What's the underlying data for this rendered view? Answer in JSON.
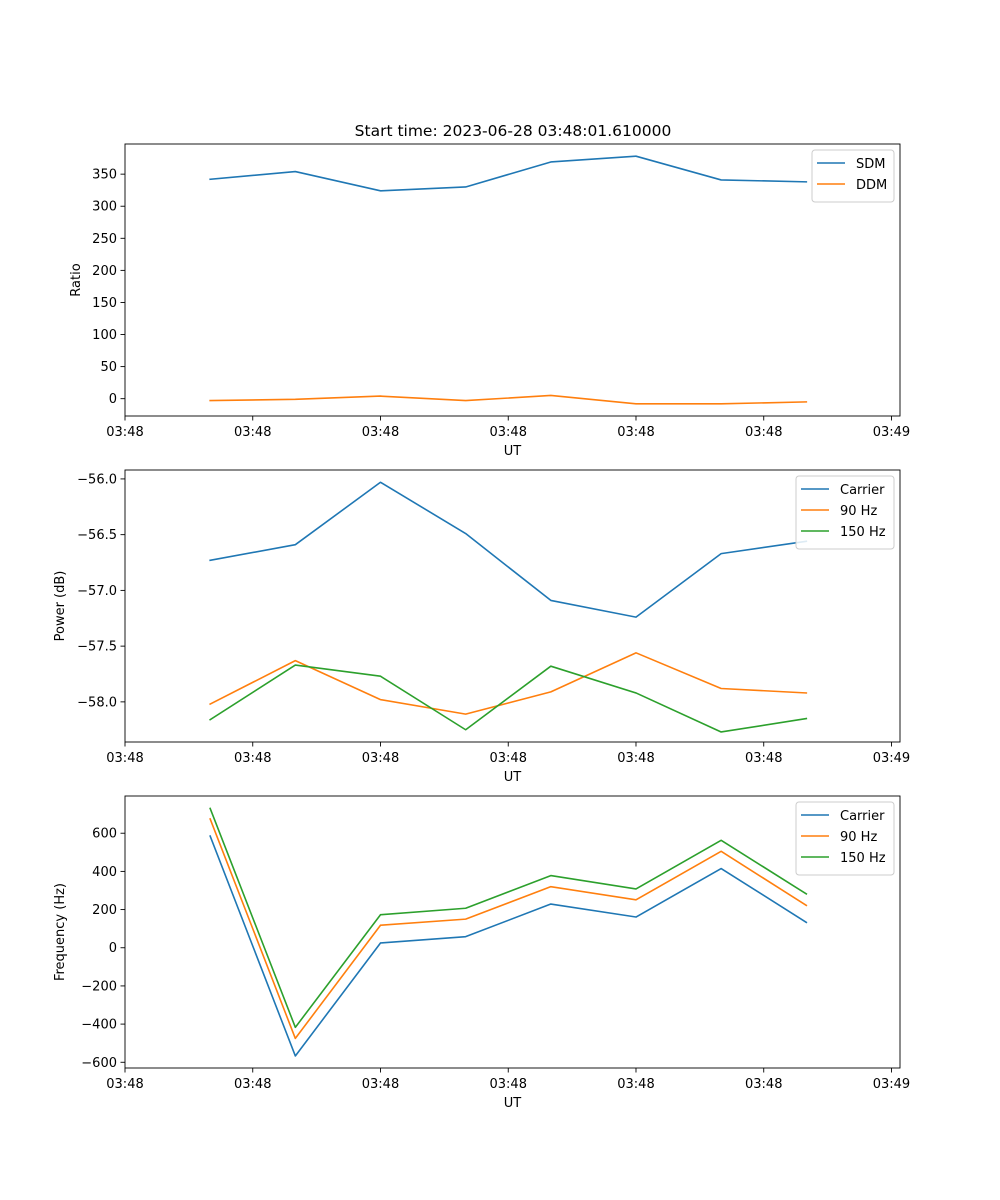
{
  "figure": {
    "title": "Start time: 2023-06-28 03:48:01.610000"
  },
  "colors": {
    "blue": "#1f77b4",
    "orange": "#ff7f0e",
    "green": "#2ca02c"
  },
  "chart_data": [
    {
      "type": "line",
      "title": "Start time: 2023-06-28 03:48:01.610000",
      "xlabel": "UT",
      "ylabel": "Ratio",
      "x": [
        1,
        2,
        3,
        4,
        5,
        6,
        7,
        8
      ],
      "xlim": [
        0.0,
        9.1
      ],
      "xticks": [
        0.0,
        1.5,
        3.0,
        4.5,
        6.0,
        7.5,
        9.0
      ],
      "xtick_labels": [
        "03:48",
        "03:48",
        "03:48",
        "03:48",
        "03:48",
        "03:48",
        "03:49"
      ],
      "ylim": [
        -27,
        397
      ],
      "yticks": [
        0,
        50,
        100,
        150,
        200,
        250,
        300,
        350
      ],
      "ytick_labels": [
        "0",
        "50",
        "100",
        "150",
        "200",
        "250",
        "300",
        "350"
      ],
      "legend_position": "upper right",
      "grid": false,
      "series": [
        {
          "name": "SDM",
          "color": "#1f77b4",
          "values": [
            342,
            354,
            324,
            330,
            369,
            378,
            341,
            338
          ]
        },
        {
          "name": "DDM",
          "color": "#ff7f0e",
          "values": [
            -3,
            -1,
            4,
            -3,
            5,
            -8,
            -8,
            -5
          ]
        }
      ]
    },
    {
      "type": "line",
      "xlabel": "UT",
      "ylabel": "Power (dB)",
      "x": [
        1,
        2,
        3,
        4,
        5,
        6,
        7,
        8
      ],
      "xlim": [
        0.0,
        9.1
      ],
      "xticks": [
        0.0,
        1.5,
        3.0,
        4.5,
        6.0,
        7.5,
        9.0
      ],
      "xtick_labels": [
        "03:48",
        "03:48",
        "03:48",
        "03:48",
        "03:48",
        "03:48",
        "03:49"
      ],
      "ylim": [
        -58.36,
        -55.92
      ],
      "yticks": [
        -58.0,
        -57.5,
        -57.0,
        -56.5,
        -56.0
      ],
      "ytick_labels": [
        "−58.0",
        "−57.5",
        "−57.0",
        "−56.5",
        "−56.0"
      ],
      "legend_position": "upper right",
      "grid": false,
      "series": [
        {
          "name": "Carrier",
          "color": "#1f77b4",
          "values": [
            -56.73,
            -56.59,
            -56.03,
            -56.49,
            -57.09,
            -57.24,
            -56.67,
            -56.56
          ]
        },
        {
          "name": "90 Hz",
          "color": "#ff7f0e",
          "values": [
            -58.02,
            -57.63,
            -57.98,
            -58.11,
            -57.91,
            -57.56,
            -57.88,
            -57.92
          ]
        },
        {
          "name": "150 Hz",
          "color": "#2ca02c",
          "values": [
            -58.16,
            -57.67,
            -57.77,
            -58.25,
            -57.68,
            -57.92,
            -58.27,
            -58.15
          ]
        }
      ]
    },
    {
      "type": "line",
      "xlabel": "UT",
      "ylabel": "Frequency (Hz)",
      "x": [
        1,
        2,
        3,
        4,
        5,
        6,
        7,
        8
      ],
      "xlim": [
        0.0,
        9.1
      ],
      "xticks": [
        0.0,
        1.5,
        3.0,
        4.5,
        6.0,
        7.5,
        9.0
      ],
      "xtick_labels": [
        "03:48",
        "03:48",
        "03:48",
        "03:48",
        "03:48",
        "03:48",
        "03:49"
      ],
      "ylim": [
        -630,
        795
      ],
      "yticks": [
        -600,
        -400,
        -200,
        0,
        200,
        400,
        600
      ],
      "ytick_labels": [
        "−600",
        "−400",
        "−200",
        "0",
        "200",
        "400",
        "600"
      ],
      "legend_position": "upper right",
      "grid": false,
      "series": [
        {
          "name": "Carrier",
          "color": "#1f77b4",
          "values": [
            585,
            -567,
            25,
            58,
            229,
            161,
            415,
            133
          ]
        },
        {
          "name": "90 Hz",
          "color": "#ff7f0e",
          "values": [
            675,
            -475,
            118,
            150,
            320,
            251,
            505,
            222
          ]
        },
        {
          "name": "150 Hz",
          "color": "#2ca02c",
          "values": [
            730,
            -417,
            173,
            207,
            378,
            308,
            563,
            282
          ]
        }
      ]
    }
  ]
}
